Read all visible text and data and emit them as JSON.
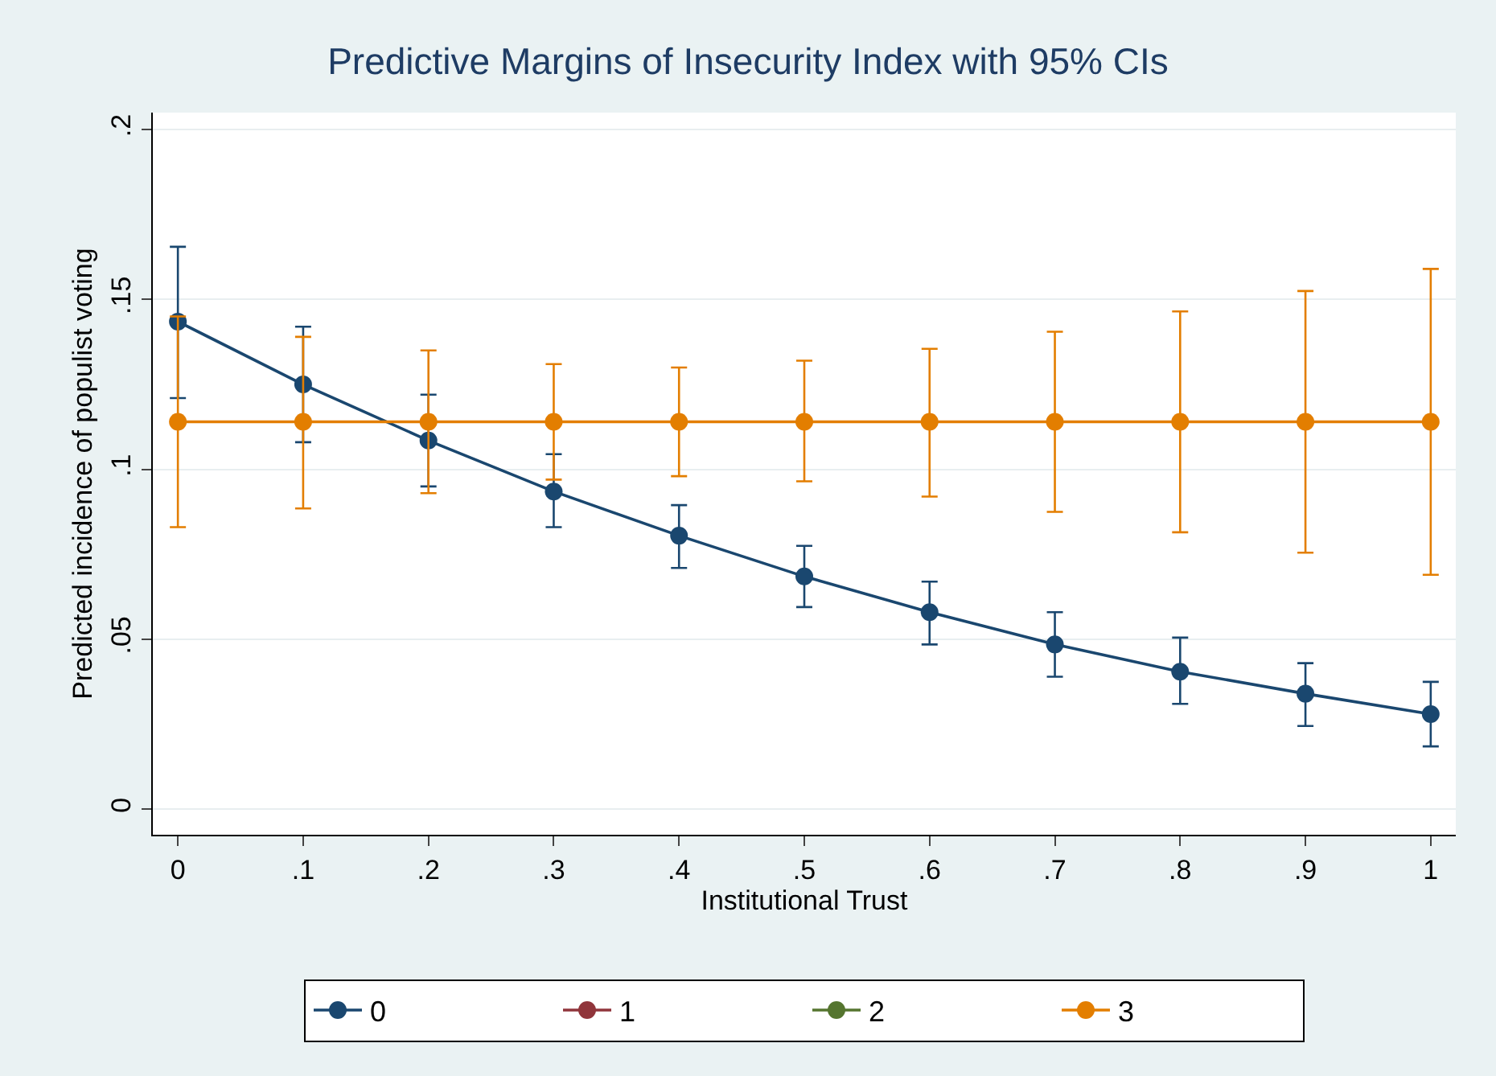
{
  "chart_data": {
    "type": "line",
    "title": "Predictive Margins of Insecurity Index with 95% CIs",
    "xlabel": "Institutional Trust",
    "ylabel": "Predicted incidence of populist voting",
    "x": [
      0,
      0.1,
      0.2,
      0.3,
      0.4,
      0.5,
      0.6,
      0.7,
      0.8,
      0.9,
      1
    ],
    "series": [
      {
        "name": "0",
        "color": "#1a476f",
        "values": [
          0.1435,
          0.125,
          0.1085,
          0.0935,
          0.0805,
          0.0685,
          0.058,
          0.0485,
          0.0405,
          0.034,
          0.028
        ],
        "errors": [
          [
            0.121,
            0.1655
          ],
          [
            0.108,
            0.142
          ],
          [
            0.095,
            0.122
          ],
          [
            0.083,
            0.1045
          ],
          [
            0.071,
            0.0895
          ],
          [
            0.0595,
            0.0775
          ],
          [
            0.0485,
            0.067
          ],
          [
            0.039,
            0.058
          ],
          [
            0.031,
            0.0505
          ],
          [
            0.0245,
            0.043
          ],
          [
            0.0185,
            0.0375
          ]
        ]
      },
      {
        "name": "1",
        "color": "#90353b",
        "values": [
          null,
          null,
          null,
          null,
          null,
          null,
          null,
          null,
          null,
          null,
          null
        ]
      },
      {
        "name": "2",
        "color": "#55752f",
        "values": [
          null,
          null,
          null,
          null,
          null,
          null,
          null,
          null,
          null,
          null,
          null
        ]
      },
      {
        "name": "3",
        "color": "#e37e00",
        "values": [
          0.114,
          0.114,
          0.114,
          0.114,
          0.114,
          0.114,
          0.114,
          0.114,
          0.114,
          0.114,
          0.114
        ],
        "errors": [
          [
            0.083,
            0.145
          ],
          [
            0.0885,
            0.139
          ],
          [
            0.093,
            0.135
          ],
          [
            0.097,
            0.131
          ],
          [
            0.098,
            0.13
          ],
          [
            0.0965,
            0.132
          ],
          [
            0.092,
            0.1355
          ],
          [
            0.0875,
            0.1405
          ],
          [
            0.0815,
            0.1465
          ],
          [
            0.0755,
            0.1525
          ],
          [
            0.069,
            0.159
          ]
        ]
      }
    ],
    "xlim": [
      -0.02,
      1.02
    ],
    "xticks": [
      {
        "value": 0,
        "label": "0"
      },
      {
        "value": 0.1,
        "label": ".1"
      },
      {
        "value": 0.2,
        "label": ".2"
      },
      {
        "value": 0.3,
        "label": ".3"
      },
      {
        "value": 0.4,
        "label": ".4"
      },
      {
        "value": 0.5,
        "label": ".5"
      },
      {
        "value": 0.6,
        "label": ".6"
      },
      {
        "value": 0.7,
        "label": ".7"
      },
      {
        "value": 0.8,
        "label": ".8"
      },
      {
        "value": 0.9,
        "label": ".9"
      },
      {
        "value": 1,
        "label": "1"
      }
    ],
    "ylim": [
      -0.0075,
      0.205
    ],
    "yticks": [
      {
        "value": 0,
        "label": "0"
      },
      {
        "value": 0.05,
        "label": ".05"
      },
      {
        "value": 0.1,
        "label": ".1"
      },
      {
        "value": 0.15,
        "label": ".15"
      },
      {
        "value": 0.2,
        "label": ".2"
      }
    ],
    "grid": "y",
    "legend": "bottom",
    "marker": "circle",
    "line_style": "solid"
  }
}
